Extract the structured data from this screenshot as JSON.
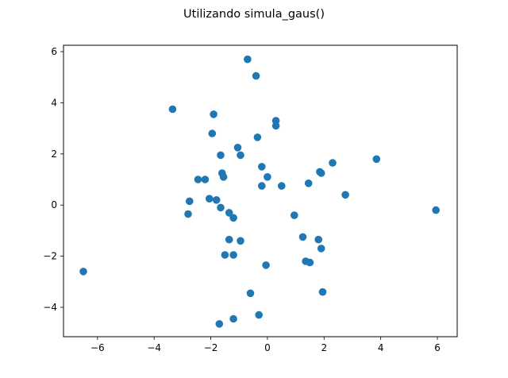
{
  "chart_data": {
    "type": "scatter",
    "title": "Utilizando simula_gaus()",
    "xlabel": "",
    "ylabel": "",
    "xlim": [
      -7.2,
      6.7
    ],
    "ylim": [
      -5.15,
      6.25
    ],
    "xticks": [
      -6,
      -4,
      -2,
      0,
      2,
      4,
      6
    ],
    "yticks": [
      -4,
      -2,
      0,
      2,
      4,
      6
    ],
    "xtick_labels": [
      "−6",
      "−4",
      "−2",
      "0",
      "2",
      "4",
      "6"
    ],
    "ytick_labels": [
      "−4",
      "−2",
      "0",
      "2",
      "4",
      "6"
    ],
    "grid": false,
    "marker_color": "#1f77b4",
    "points": [
      {
        "x": -0.7,
        "y": 5.7
      },
      {
        "x": -0.4,
        "y": 5.05
      },
      {
        "x": -3.35,
        "y": 3.75
      },
      {
        "x": -1.9,
        "y": 3.55
      },
      {
        "x": 0.3,
        "y": 3.3
      },
      {
        "x": 0.3,
        "y": 3.1
      },
      {
        "x": -1.95,
        "y": 2.8
      },
      {
        "x": -0.35,
        "y": 2.65
      },
      {
        "x": -1.05,
        "y": 2.25
      },
      {
        "x": -1.65,
        "y": 1.95
      },
      {
        "x": -0.95,
        "y": 1.95
      },
      {
        "x": -0.2,
        "y": 1.5
      },
      {
        "x": -1.6,
        "y": 1.25
      },
      {
        "x": -1.55,
        "y": 1.1
      },
      {
        "x": 0.0,
        "y": 1.1
      },
      {
        "x": -2.45,
        "y": 1.0
      },
      {
        "x": -2.2,
        "y": 1.0
      },
      {
        "x": -0.2,
        "y": 0.75
      },
      {
        "x": 0.5,
        "y": 0.75
      },
      {
        "x": 1.45,
        "y": 0.85
      },
      {
        "x": -2.05,
        "y": 0.25
      },
      {
        "x": -1.8,
        "y": 0.2
      },
      {
        "x": -2.75,
        "y": 0.15
      },
      {
        "x": -1.65,
        "y": -0.1
      },
      {
        "x": -1.35,
        "y": -0.3
      },
      {
        "x": -1.2,
        "y": -0.5
      },
      {
        "x": -2.8,
        "y": -0.35
      },
      {
        "x": 0.95,
        "y": -0.4
      },
      {
        "x": 1.85,
        "y": 1.3
      },
      {
        "x": 1.9,
        "y": 1.25
      },
      {
        "x": 2.3,
        "y": 1.65
      },
      {
        "x": 2.75,
        "y": 0.4
      },
      {
        "x": 3.85,
        "y": 1.8
      },
      {
        "x": 5.95,
        "y": -0.2
      },
      {
        "x": 1.25,
        "y": -1.25
      },
      {
        "x": 1.8,
        "y": -1.35
      },
      {
        "x": 1.9,
        "y": -1.7
      },
      {
        "x": -1.35,
        "y": -1.35
      },
      {
        "x": -0.95,
        "y": -1.4
      },
      {
        "x": -1.5,
        "y": -1.95
      },
      {
        "x": -1.2,
        "y": -1.95
      },
      {
        "x": 1.35,
        "y": -2.2
      },
      {
        "x": 1.5,
        "y": -2.25
      },
      {
        "x": -0.05,
        "y": -2.35
      },
      {
        "x": -6.5,
        "y": -2.6
      },
      {
        "x": -0.6,
        "y": -3.45
      },
      {
        "x": 1.95,
        "y": -3.4
      },
      {
        "x": -0.3,
        "y": -4.3
      },
      {
        "x": -1.2,
        "y": -4.45
      },
      {
        "x": -1.7,
        "y": -4.65
      }
    ]
  }
}
